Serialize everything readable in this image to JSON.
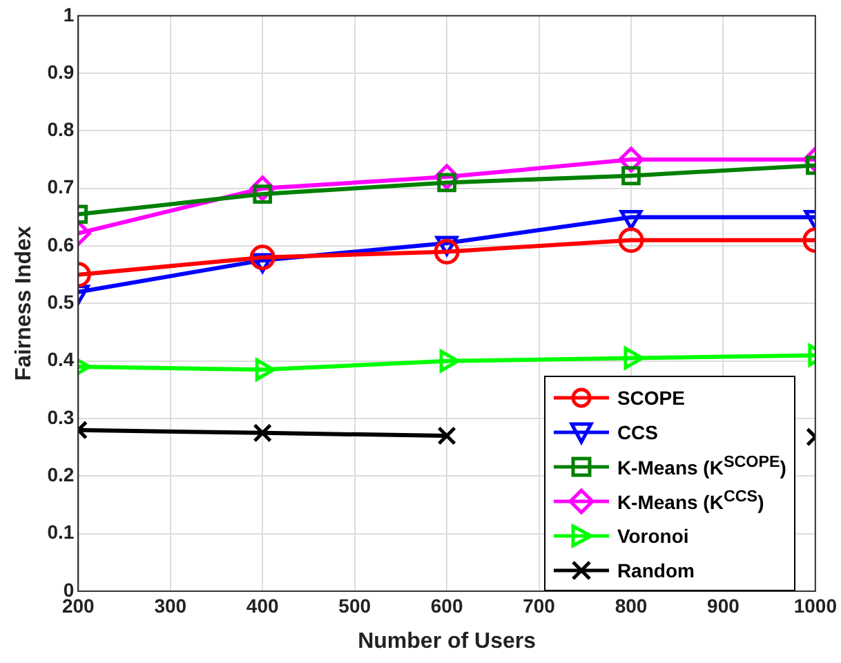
{
  "chart_data": {
    "type": "line",
    "xlabel": "Number of Users",
    "ylabel": "Fairness Index",
    "x": [
      200,
      400,
      600,
      800,
      1000
    ],
    "xlim": [
      200,
      1000
    ],
    "xticks": [
      200,
      300,
      400,
      500,
      600,
      700,
      800,
      900,
      1000
    ],
    "ylim": [
      0,
      1
    ],
    "yticks": [
      0,
      0.1,
      0.2,
      0.3,
      0.4,
      0.5,
      0.6,
      0.7,
      0.8,
      0.9,
      1
    ],
    "grid": true,
    "legend": "bottom right",
    "line_style": "solid",
    "series": [
      {
        "name": "SCOPE",
        "color": "#ff0000",
        "marker": "circle",
        "values": [
          0.55,
          0.58,
          0.59,
          0.61,
          0.61
        ]
      },
      {
        "name": "CCS",
        "color": "#0000ff",
        "marker": "triangle",
        "values": [
          0.52,
          0.575,
          0.605,
          0.65,
          0.65
        ]
      },
      {
        "name": "K-Means (K$^{SCOPE}$)",
        "color": "#008000",
        "marker": "square",
        "values": [
          0.655,
          0.69,
          0.71,
          0.722,
          0.74
        ]
      },
      {
        "name": "K-Means (K$^{CCS}$)",
        "color": "#ff00ff",
        "marker": "diamond",
        "values": [
          0.622,
          0.7,
          0.72,
          0.75,
          0.75
        ]
      },
      {
        "name": "Voronoi",
        "color": "#00ff00",
        "marker": "triangle",
        "values": [
          0.39,
          0.385,
          0.4,
          0.405,
          0.41
        ]
      },
      {
        "name": "Random",
        "color": "#000000",
        "marker": "cross",
        "values": [
          0.28,
          0.275,
          0.27,
          null,
          0.268
        ]
      }
    ]
  }
}
